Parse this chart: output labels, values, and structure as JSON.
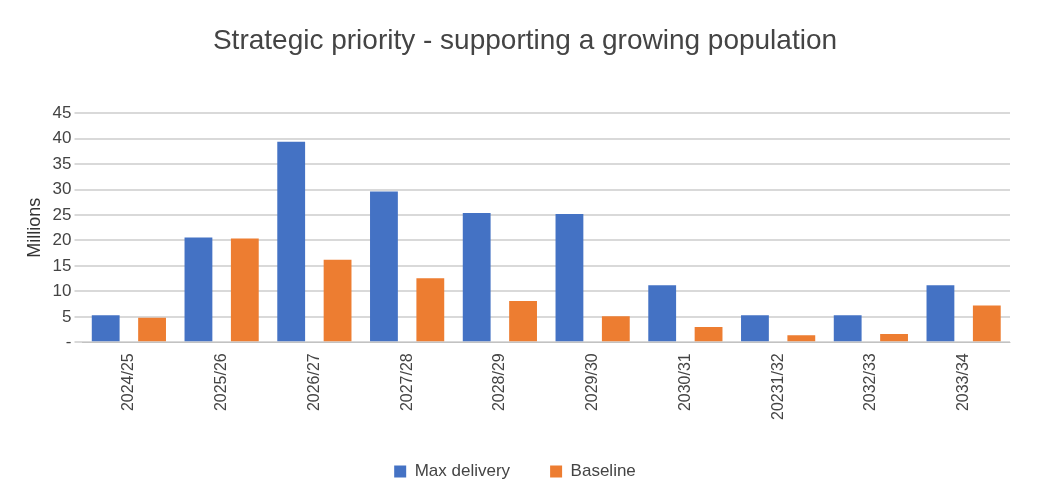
{
  "chart_data": {
    "type": "bar",
    "title": "Strategic priority - supporting a growing population",
    "ylabel": "Millions",
    "categories": [
      "2024/25",
      "2025/26",
      "2026/27",
      "2027/28",
      "2028/29",
      "2029/30",
      "2030/31",
      "20231/32",
      "2032/33",
      "2033/34"
    ],
    "series": [
      {
        "name": "Max delivery",
        "color": "#4472c4",
        "values": [
          5.3,
          20.6,
          39.4,
          29.6,
          25.4,
          25.2,
          11.2,
          5.3,
          5.3,
          11.2
        ]
      },
      {
        "name": "Baseline",
        "color": "#ed7d31",
        "values": [
          4.8,
          20.4,
          16.2,
          12.6,
          8.1,
          5.1,
          3.0,
          1.4,
          1.6,
          7.2
        ]
      }
    ],
    "ylim": [
      0,
      45
    ],
    "yticks": [
      {
        "value": 0,
        "label": "-"
      },
      5,
      10,
      15,
      20,
      25,
      30,
      35,
      40,
      45
    ],
    "grid": "y",
    "legend": "bottom"
  }
}
